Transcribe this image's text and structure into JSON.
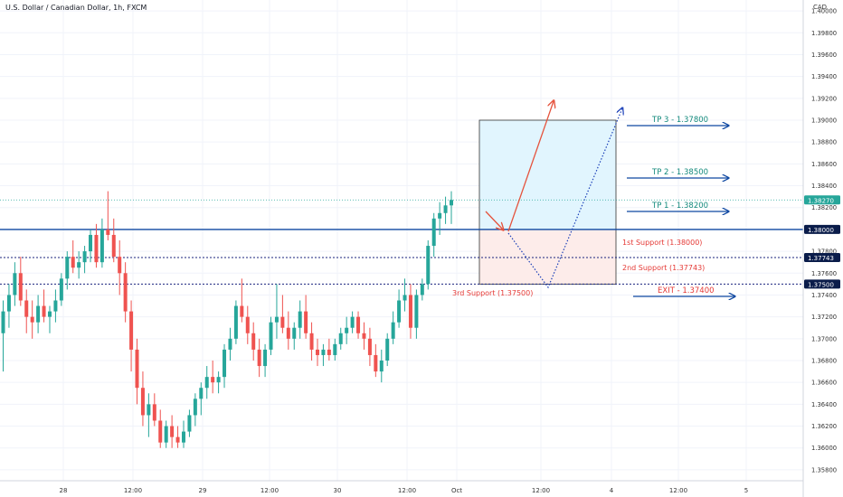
{
  "header": {
    "title": "U.S. Dollar / Canadian Dollar, 1h, FXCM",
    "currency": "CAD"
  },
  "colors": {
    "up": "#26a69a",
    "down": "#ef5350",
    "blue": "#0d47a1",
    "dotted": "#1a237e",
    "tp_text": "#138a7c",
    "support_text": "#e53935",
    "tp_box": "#e1f5fe",
    "support_box": "#fdecea"
  },
  "chart_data": {
    "type": "candlestick",
    "y_axis": {
      "ticks": [
        "1.40000",
        "1.39800",
        "1.39600",
        "1.39400",
        "1.39200",
        "1.39000",
        "1.38800",
        "1.38600",
        "1.38400",
        "1.38200",
        "1.37800",
        "1.37600",
        "1.37400",
        "1.37200",
        "1.37000",
        "1.36800",
        "1.36600",
        "1.36400",
        "1.36200",
        "1.36000",
        "1.35800"
      ],
      "range": [
        1.357,
        1.401
      ]
    },
    "x_axis": {
      "ticks": [
        "28",
        "12:00",
        "29",
        "12:00",
        "30",
        "12:00",
        "Oct",
        "12:00",
        "4",
        "12:00",
        "5"
      ]
    },
    "price_tags": [
      {
        "label": "1.38270",
        "value": 1.3827,
        "style": "green"
      },
      {
        "label": "1.38000",
        "value": 1.38,
        "style": "dark"
      },
      {
        "label": "1.37743",
        "value": 1.37743,
        "style": "dark"
      },
      {
        "label": "1.37500",
        "value": 1.375,
        "style": "dark"
      }
    ],
    "levels": [
      {
        "label": "TP 3 - 1.37800",
        "kind": "tp"
      },
      {
        "label": "TP 2 - 1.38500",
        "kind": "tp"
      },
      {
        "label": "TP 1 - 1.38200",
        "kind": "tp"
      },
      {
        "label": "1st Support (1.38000)",
        "kind": "support"
      },
      {
        "label": "2nd Support (1.37743)",
        "kind": "support"
      },
      {
        "label": "3rd Support (1.37500)",
        "kind": "support"
      },
      {
        "label": "EXIT - 1.37400",
        "kind": "exit"
      }
    ],
    "candles": [
      [
        1.3705,
        1.3735,
        1.367,
        1.3725
      ],
      [
        1.3725,
        1.375,
        1.371,
        1.374
      ],
      [
        1.374,
        1.377,
        1.373,
        1.376
      ],
      [
        1.376,
        1.3775,
        1.373,
        1.3735
      ],
      [
        1.3735,
        1.3745,
        1.3705,
        1.372
      ],
      [
        1.372,
        1.3735,
        1.37,
        1.3715
      ],
      [
        1.3715,
        1.374,
        1.3705,
        1.373
      ],
      [
        1.373,
        1.3745,
        1.3715,
        1.372
      ],
      [
        1.372,
        1.373,
        1.3705,
        1.3725
      ],
      [
        1.3725,
        1.3745,
        1.3715,
        1.3735
      ],
      [
        1.3735,
        1.376,
        1.373,
        1.3755
      ],
      [
        1.3755,
        1.378,
        1.3745,
        1.3775
      ],
      [
        1.3775,
        1.379,
        1.376,
        1.3765
      ],
      [
        1.3765,
        1.378,
        1.3755,
        1.377
      ],
      [
        1.377,
        1.3785,
        1.376,
        1.378
      ],
      [
        1.378,
        1.38,
        1.377,
        1.3795
      ],
      [
        1.3795,
        1.3805,
        1.3765,
        1.377
      ],
      [
        1.377,
        1.381,
        1.3765,
        1.38
      ],
      [
        1.38,
        1.3835,
        1.379,
        1.3795
      ],
      [
        1.3795,
        1.381,
        1.377,
        1.3775
      ],
      [
        1.3775,
        1.379,
        1.374,
        1.376
      ],
      [
        1.376,
        1.377,
        1.3715,
        1.3725
      ],
      [
        1.3725,
        1.3735,
        1.367,
        1.369
      ],
      [
        1.369,
        1.37,
        1.364,
        1.3655
      ],
      [
        1.3655,
        1.367,
        1.362,
        1.363
      ],
      [
        1.363,
        1.365,
        1.361,
        1.364
      ],
      [
        1.364,
        1.365,
        1.362,
        1.3625
      ],
      [
        1.3625,
        1.3635,
        1.36,
        1.3605
      ],
      [
        1.3605,
        1.3625,
        1.36,
        1.362
      ],
      [
        1.362,
        1.363,
        1.36,
        1.361
      ],
      [
        1.361,
        1.362,
        1.36,
        1.3605
      ],
      [
        1.3605,
        1.3625,
        1.36,
        1.3615
      ],
      [
        1.3615,
        1.3635,
        1.361,
        1.363
      ],
      [
        1.363,
        1.365,
        1.362,
        1.3645
      ],
      [
        1.3645,
        1.366,
        1.363,
        1.3655
      ],
      [
        1.3655,
        1.3675,
        1.3645,
        1.3665
      ],
      [
        1.3665,
        1.368,
        1.365,
        1.366
      ],
      [
        1.366,
        1.367,
        1.365,
        1.3665
      ],
      [
        1.3665,
        1.3695,
        1.3655,
        1.369
      ],
      [
        1.369,
        1.371,
        1.368,
        1.37
      ],
      [
        1.37,
        1.3735,
        1.3695,
        1.373
      ],
      [
        1.373,
        1.3755,
        1.3715,
        1.372
      ],
      [
        1.372,
        1.373,
        1.3695,
        1.3705
      ],
      [
        1.3705,
        1.3715,
        1.368,
        1.369
      ],
      [
        1.369,
        1.37,
        1.3665,
        1.3675
      ],
      [
        1.3675,
        1.3695,
        1.3665,
        1.369
      ],
      [
        1.369,
        1.372,
        1.3685,
        1.3715
      ],
      [
        1.3715,
        1.375,
        1.37,
        1.372
      ],
      [
        1.372,
        1.374,
        1.3705,
        1.371
      ],
      [
        1.371,
        1.3725,
        1.369,
        1.37
      ],
      [
        1.37,
        1.3715,
        1.369,
        1.371
      ],
      [
        1.371,
        1.3735,
        1.37,
        1.3725
      ],
      [
        1.3725,
        1.374,
        1.37,
        1.3705
      ],
      [
        1.3705,
        1.3715,
        1.368,
        1.369
      ],
      [
        1.369,
        1.37,
        1.3675,
        1.3685
      ],
      [
        1.3685,
        1.3695,
        1.3675,
        1.369
      ],
      [
        1.369,
        1.37,
        1.368,
        1.3685
      ],
      [
        1.3685,
        1.37,
        1.368,
        1.3695
      ],
      [
        1.3695,
        1.371,
        1.369,
        1.3705
      ],
      [
        1.3705,
        1.372,
        1.3695,
        1.371
      ],
      [
        1.371,
        1.3725,
        1.3705,
        1.372
      ],
      [
        1.372,
        1.3725,
        1.37,
        1.3705
      ],
      [
        1.3705,
        1.3715,
        1.369,
        1.37
      ],
      [
        1.37,
        1.371,
        1.3675,
        1.3685
      ],
      [
        1.3685,
        1.3695,
        1.3665,
        1.367
      ],
      [
        1.367,
        1.369,
        1.366,
        1.368
      ],
      [
        1.368,
        1.3705,
        1.3675,
        1.37
      ],
      [
        1.37,
        1.3725,
        1.3695,
        1.3715
      ],
      [
        1.3715,
        1.3745,
        1.371,
        1.3735
      ],
      [
        1.3735,
        1.3755,
        1.3725,
        1.374
      ],
      [
        1.374,
        1.375,
        1.37,
        1.371
      ],
      [
        1.371,
        1.3745,
        1.37,
        1.374
      ],
      [
        1.374,
        1.3755,
        1.3735,
        1.375
      ],
      [
        1.375,
        1.379,
        1.3745,
        1.3785
      ],
      [
        1.3785,
        1.3815,
        1.3775,
        1.381
      ],
      [
        1.381,
        1.3825,
        1.3795,
        1.3815
      ],
      [
        1.3815,
        1.383,
        1.3805,
        1.3822
      ],
      [
        1.3822,
        1.3835,
        1.3805,
        1.3827
      ]
    ]
  }
}
